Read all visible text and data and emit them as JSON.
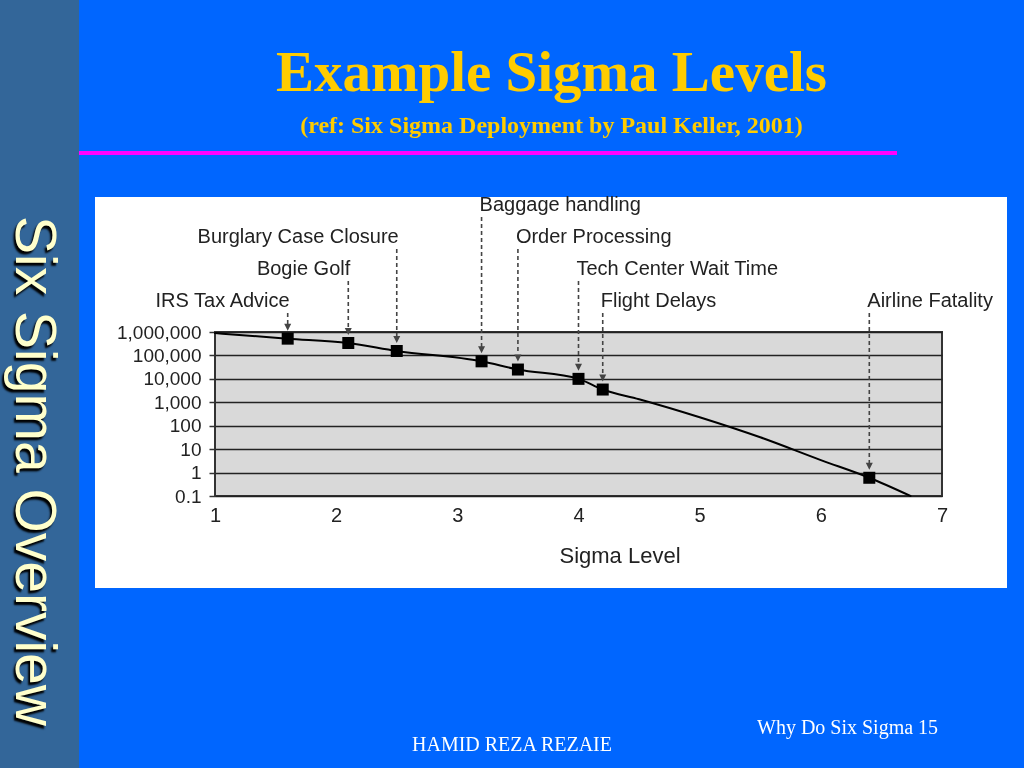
{
  "chart_data": {
    "type": "line",
    "title": "Example Sigma Levels",
    "subtitle": "(ref: Six Sigma Deployment by Paul Keller, 2001)",
    "xlabel": "Sigma Level",
    "annotations": [
      "IRS Tax Advice",
      "Bogie Golf",
      "Burglary Case Closure",
      "Baggage handling",
      "Order Processing",
      "Tech Center Wait Time",
      "Flight Delays",
      "Airline Fatality",
      "Six Sigma Overview",
      "HAMID REZA REZAIE",
      "Why Do Six Sigma 15"
    ],
    "series": [
      {
        "color": "#000000",
        "x": [
          1,
          1.6,
          2.1,
          2.5,
          3.2,
          3.5,
          4,
          4.2,
          4.5,
          5,
          5.5,
          6,
          6.4,
          6.74
        ],
        "values": [
          900000,
          520000,
          340000,
          155000,
          56000,
          25000,
          10000,
          3500,
          1350,
          230,
          32,
          3.4,
          0.6,
          0.1
        ]
      },
      {
        "type": "scatter",
        "color": "#000000",
        "marker": "square",
        "x": [
          1.6,
          2.1,
          2.5,
          3.2,
          3.5,
          4,
          4.2,
          6.4
        ],
        "values": [
          520000,
          340000,
          155000,
          56000,
          25000,
          10000,
          3500,
          0.6
        ]
      }
    ],
    "xlim": [
      1,
      7
    ],
    "xticks": [
      1,
      2,
      3,
      4,
      5,
      6,
      7
    ],
    "ylim": [
      0.1,
      1000000
    ],
    "yticks": [
      0.1,
      1,
      10,
      100,
      {
        "value": 1000,
        "label": "1,000"
      },
      {
        "value": 10000,
        "label": "10,000"
      },
      {
        "value": 100000,
        "label": "100,000"
      },
      {
        "value": 1000000,
        "label": "1,000,000"
      }
    ],
    "log": "y",
    "grid": "y"
  }
}
